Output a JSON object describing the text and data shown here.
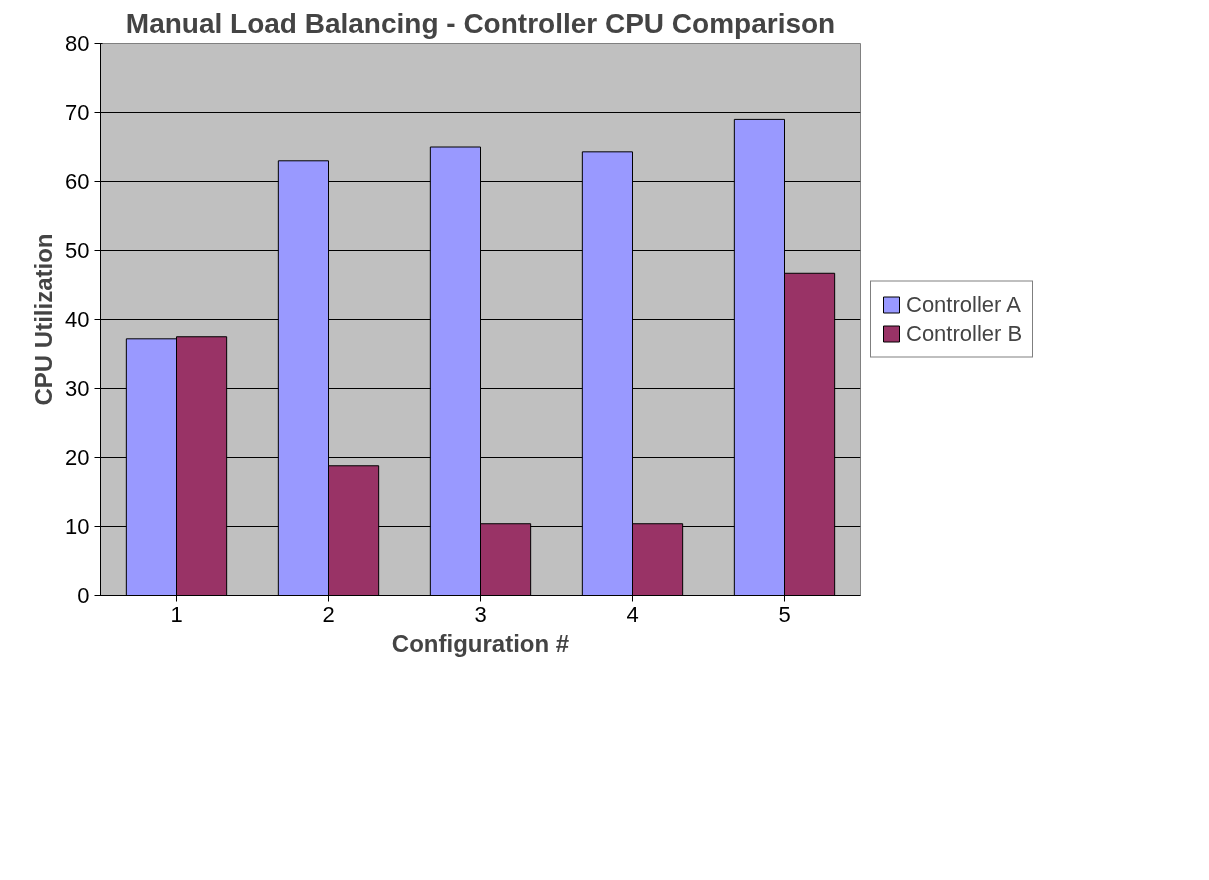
{
  "chart_data": {
    "type": "bar",
    "title": "Manual Load Balancing - Controller CPU Comparison",
    "xlabel": "Configuration #",
    "ylabel": "CPU Utilization",
    "categories": [
      "1",
      "2",
      "3",
      "4",
      "5"
    ],
    "series": [
      {
        "name": "Controller A",
        "color": "#9999ff",
        "values": [
          37.2,
          63,
          65,
          64.3,
          69
        ]
      },
      {
        "name": "Controller B",
        "color": "#993366",
        "values": [
          37.5,
          18.8,
          10.4,
          10.4,
          46.7
        ]
      }
    ],
    "ylim": [
      0,
      80
    ],
    "yticks": [
      0,
      10,
      20,
      30,
      40,
      50,
      60,
      70,
      80
    ],
    "grid": "y",
    "legend": "right"
  }
}
